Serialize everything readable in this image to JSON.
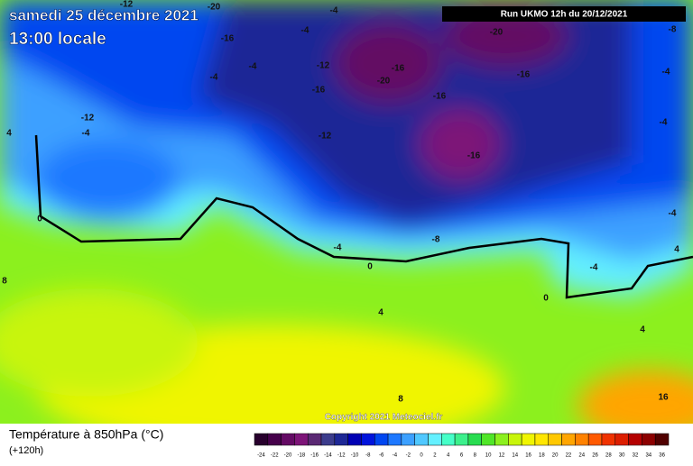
{
  "header": {
    "title": "samedi 25 décembre 2021",
    "subtitle": "13:00 locale",
    "run": "Run UKMO 12h du 20/12/2021"
  },
  "map": {
    "contour_labels": [
      "-12",
      "-20",
      "-4",
      "-8",
      "-16",
      "-20",
      "-4",
      "-12",
      "-16",
      "-16",
      "-20",
      "-4",
      "-16",
      "-4",
      "-16",
      "-4",
      "-4",
      "-12",
      "-4",
      "4",
      "-12",
      "-16",
      "0",
      "-4",
      "-8",
      "-4",
      "4",
      "-4",
      "0",
      "0",
      "8",
      "4",
      "4",
      "8",
      "16"
    ],
    "copyright": "Copyright 2021 Meteociel.fr"
  },
  "footer": {
    "variable": "Température à 850hPa (°C)",
    "lead": "(+120h)"
  },
  "legend": {
    "values": [
      -24,
      -22,
      -20,
      -18,
      -16,
      -14,
      -12,
      -10,
      -8,
      -6,
      -4,
      -2,
      0,
      2,
      4,
      6,
      8,
      10,
      12,
      14,
      16,
      18,
      20,
      22,
      24,
      26,
      28,
      30,
      32,
      34,
      36
    ],
    "colors": [
      "#28002d",
      "#46004b",
      "#640a64",
      "#7d1478",
      "#5a2873",
      "#3c3c8c",
      "#1e2896",
      "#0000b4",
      "#0014dc",
      "#0046f0",
      "#1e78ff",
      "#3ca0ff",
      "#50c8ff",
      "#64f0ff",
      "#46ffc8",
      "#3cf08c",
      "#28dc50",
      "#50e628",
      "#8cf01e",
      "#c8f50a",
      "#f0f500",
      "#ffe600",
      "#ffc800",
      "#ffa500",
      "#ff8200",
      "#ff5a00",
      "#f03200",
      "#dc1e00",
      "#b40000",
      "#8c0000",
      "#500000"
    ]
  }
}
